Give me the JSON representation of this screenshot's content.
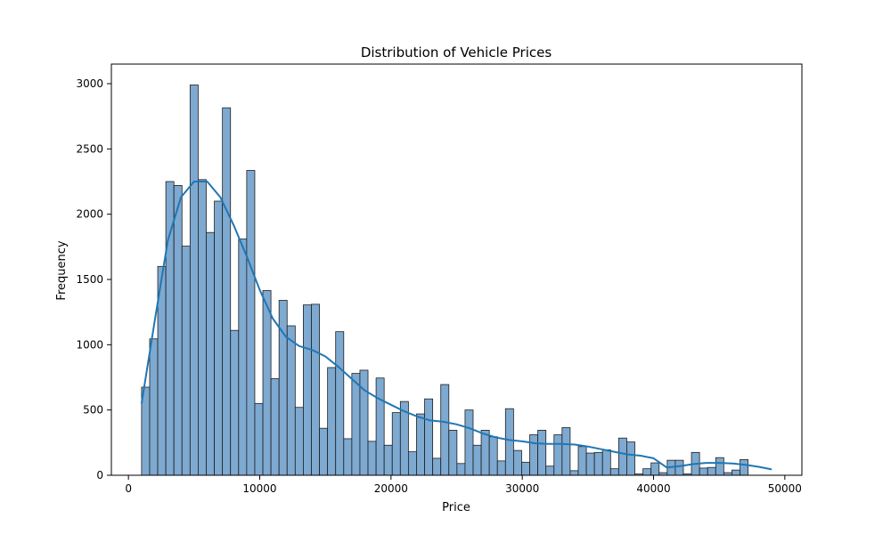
{
  "chart_data": {
    "type": "bar",
    "title": "Distribution of Vehicle Prices",
    "xlabel": "Price",
    "ylabel": "Frequency",
    "xlim": [
      -1300,
      51300
    ],
    "ylim": [
      0,
      3150
    ],
    "x_ticks": [
      0,
      10000,
      20000,
      30000,
      40000,
      50000
    ],
    "y_ticks": [
      0,
      500,
      1000,
      1500,
      2000,
      2500,
      3000
    ],
    "bin_start": 1000,
    "bin_width": 616,
    "values": [
      675,
      1045,
      1600,
      2250,
      2220,
      1755,
      2990,
      2265,
      1860,
      2100,
      2815,
      1110,
      1810,
      2335,
      550,
      1415,
      740,
      1340,
      1145,
      520,
      1305,
      1310,
      360,
      825,
      1100,
      280,
      780,
      805,
      260,
      745,
      230,
      480,
      565,
      180,
      470,
      585,
      130,
      695,
      345,
      90,
      500,
      230,
      345,
      295,
      110,
      510,
      190,
      100,
      310,
      345,
      70,
      310,
      365,
      35,
      220,
      170,
      175,
      195,
      50,
      285,
      255,
      10,
      50,
      95,
      20,
      115,
      115,
      10,
      175,
      55,
      60,
      135,
      20,
      40,
      120
    ],
    "kde": [
      [
        1000,
        550
      ],
      [
        2000,
        1180
      ],
      [
        3000,
        1800
      ],
      [
        4000,
        2130
      ],
      [
        5000,
        2250
      ],
      [
        6000,
        2250
      ],
      [
        7000,
        2130
      ],
      [
        8000,
        1920
      ],
      [
        9000,
        1680
      ],
      [
        10000,
        1420
      ],
      [
        11000,
        1200
      ],
      [
        12000,
        1060
      ],
      [
        13000,
        990
      ],
      [
        14000,
        960
      ],
      [
        15000,
        910
      ],
      [
        16000,
        830
      ],
      [
        17000,
        740
      ],
      [
        18000,
        650
      ],
      [
        19000,
        590
      ],
      [
        20000,
        540
      ],
      [
        21000,
        490
      ],
      [
        22000,
        450
      ],
      [
        23000,
        420
      ],
      [
        24000,
        410
      ],
      [
        25000,
        390
      ],
      [
        26000,
        360
      ],
      [
        27000,
        320
      ],
      [
        28000,
        290
      ],
      [
        29000,
        270
      ],
      [
        30000,
        260
      ],
      [
        31000,
        245
      ],
      [
        32000,
        240
      ],
      [
        33000,
        240
      ],
      [
        34000,
        235
      ],
      [
        35000,
        220
      ],
      [
        36000,
        200
      ],
      [
        37000,
        180
      ],
      [
        38000,
        160
      ],
      [
        39000,
        150
      ],
      [
        40000,
        130
      ],
      [
        41000,
        60
      ],
      [
        42000,
        70
      ],
      [
        43000,
        85
      ],
      [
        44000,
        95
      ],
      [
        45000,
        95
      ],
      [
        46000,
        90
      ],
      [
        47000,
        80
      ],
      [
        48000,
        65
      ],
      [
        49000,
        45
      ]
    ],
    "colors": {
      "bar_fill": "#7ea9d0",
      "bar_edge": "#1f1f1f",
      "kde_line": "#1f77b4",
      "axes": "#000000",
      "background": "#ffffff"
    },
    "grid": false,
    "legend": "none"
  }
}
